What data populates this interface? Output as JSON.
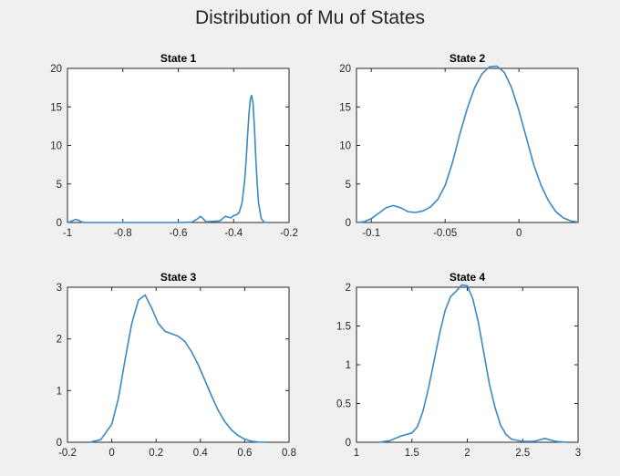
{
  "figure": {
    "title": "Distribution of Mu of States",
    "line_color": "#3b88c4"
  },
  "chart_data": [
    {
      "type": "line",
      "title": "State 1",
      "xlim": [
        -1,
        -0.2
      ],
      "ylim": [
        0,
        20
      ],
      "xticks": [
        -1,
        -0.8,
        -0.6,
        -0.4,
        -0.2
      ],
      "xtick_labels": [
        "-1",
        "-0.8",
        "-0.6",
        "-0.4",
        "-0.2"
      ],
      "yticks": [
        0,
        5,
        10,
        15,
        20
      ],
      "ytick_labels": [
        "0",
        "5",
        "10",
        "15",
        "20"
      ],
      "x": [
        -1.0,
        -0.99,
        -0.98,
        -0.97,
        -0.96,
        -0.95,
        -0.94,
        -0.9,
        -0.8,
        -0.7,
        -0.6,
        -0.55,
        -0.53,
        -0.52,
        -0.51,
        -0.5,
        -0.45,
        -0.44,
        -0.43,
        -0.42,
        -0.41,
        -0.4,
        -0.39,
        -0.38,
        -0.37,
        -0.36,
        -0.355,
        -0.35,
        -0.345,
        -0.34,
        -0.335,
        -0.33,
        -0.325,
        -0.32,
        -0.315,
        -0.31,
        -0.3,
        -0.29,
        -0.28
      ],
      "y": [
        0,
        0.1,
        0.25,
        0.4,
        0.3,
        0.1,
        0,
        0,
        0,
        0,
        0,
        0.05,
        0.5,
        0.8,
        0.5,
        0.1,
        0.2,
        0.5,
        0.8,
        0.7,
        0.6,
        0.9,
        1.0,
        1.3,
        2.5,
        5.5,
        8.0,
        11.0,
        14.0,
        16.0,
        16.5,
        15.5,
        12.5,
        8.5,
        5.0,
        2.5,
        0.5,
        0.05,
        0
      ]
    },
    {
      "type": "line",
      "title": "State 2",
      "xlim": [
        -0.11,
        0.04
      ],
      "ylim": [
        0,
        20
      ],
      "xticks": [
        -0.1,
        -0.05,
        0
      ],
      "xtick_labels": [
        "-0.1",
        "-0.05",
        "0"
      ],
      "yticks": [
        0,
        5,
        10,
        15,
        20
      ],
      "ytick_labels": [
        "0",
        "5",
        "10",
        "15",
        "20"
      ],
      "x": [
        -0.11,
        -0.105,
        -0.1,
        -0.095,
        -0.09,
        -0.085,
        -0.08,
        -0.075,
        -0.07,
        -0.065,
        -0.06,
        -0.055,
        -0.05,
        -0.045,
        -0.04,
        -0.035,
        -0.03,
        -0.025,
        -0.02,
        -0.015,
        -0.01,
        -0.005,
        0,
        0.005,
        0.01,
        0.015,
        0.02,
        0.025,
        0.03,
        0.035,
        0.04
      ],
      "y": [
        0,
        0.1,
        0.5,
        1.2,
        1.9,
        2.2,
        1.9,
        1.4,
        1.3,
        1.5,
        2.0,
        3.0,
        4.8,
        7.8,
        11.5,
        14.8,
        17.5,
        19.3,
        20.2,
        20.3,
        19.5,
        17.5,
        14.5,
        11.0,
        7.5,
        4.8,
        2.8,
        1.4,
        0.6,
        0.2,
        0.05
      ]
    },
    {
      "type": "line",
      "title": "State 3",
      "xlim": [
        -0.2,
        0.8
      ],
      "ylim": [
        0,
        3
      ],
      "xticks": [
        -0.2,
        0,
        0.2,
        0.4,
        0.6,
        0.8
      ],
      "xtick_labels": [
        "-0.2",
        "0",
        "0.2",
        "0.4",
        "0.6",
        "0.8"
      ],
      "yticks": [
        0,
        1,
        2,
        3
      ],
      "ytick_labels": [
        "0",
        "1",
        "2",
        "3"
      ],
      "x": [
        -0.1,
        -0.05,
        0,
        0.03,
        0.06,
        0.09,
        0.12,
        0.15,
        0.18,
        0.21,
        0.24,
        0.27,
        0.3,
        0.33,
        0.36,
        0.39,
        0.42,
        0.45,
        0.48,
        0.51,
        0.54,
        0.57,
        0.6,
        0.63,
        0.66,
        0.7
      ],
      "y": [
        0,
        0.05,
        0.35,
        0.85,
        1.6,
        2.3,
        2.75,
        2.85,
        2.6,
        2.3,
        2.15,
        2.1,
        2.05,
        1.95,
        1.75,
        1.5,
        1.2,
        0.9,
        0.62,
        0.4,
        0.24,
        0.13,
        0.06,
        0.02,
        0.005,
        0
      ]
    },
    {
      "type": "line",
      "title": "State 4",
      "xlim": [
        1,
        3
      ],
      "ylim": [
        0,
        2
      ],
      "xticks": [
        1,
        1.5,
        2,
        2.5,
        3
      ],
      "xtick_labels": [
        "1",
        "1.5",
        "2",
        "2.5",
        "3"
      ],
      "yticks": [
        0,
        0.5,
        1,
        1.5,
        2
      ],
      "ytick_labels": [
        "0",
        "0.5",
        "1",
        "1.5",
        "2"
      ],
      "x": [
        1.2,
        1.3,
        1.4,
        1.5,
        1.55,
        1.6,
        1.65,
        1.7,
        1.75,
        1.8,
        1.85,
        1.9,
        1.95,
        2.0,
        2.05,
        2.1,
        2.15,
        2.2,
        2.25,
        2.3,
        2.35,
        2.4,
        2.5,
        2.6,
        2.7,
        2.8,
        2.9
      ],
      "y": [
        0,
        0.02,
        0.08,
        0.12,
        0.2,
        0.4,
        0.7,
        1.05,
        1.4,
        1.7,
        1.88,
        1.95,
        2.03,
        2.02,
        1.85,
        1.55,
        1.15,
        0.75,
        0.45,
        0.22,
        0.1,
        0.04,
        0.01,
        0.01,
        0.05,
        0.01,
        0
      ]
    }
  ]
}
